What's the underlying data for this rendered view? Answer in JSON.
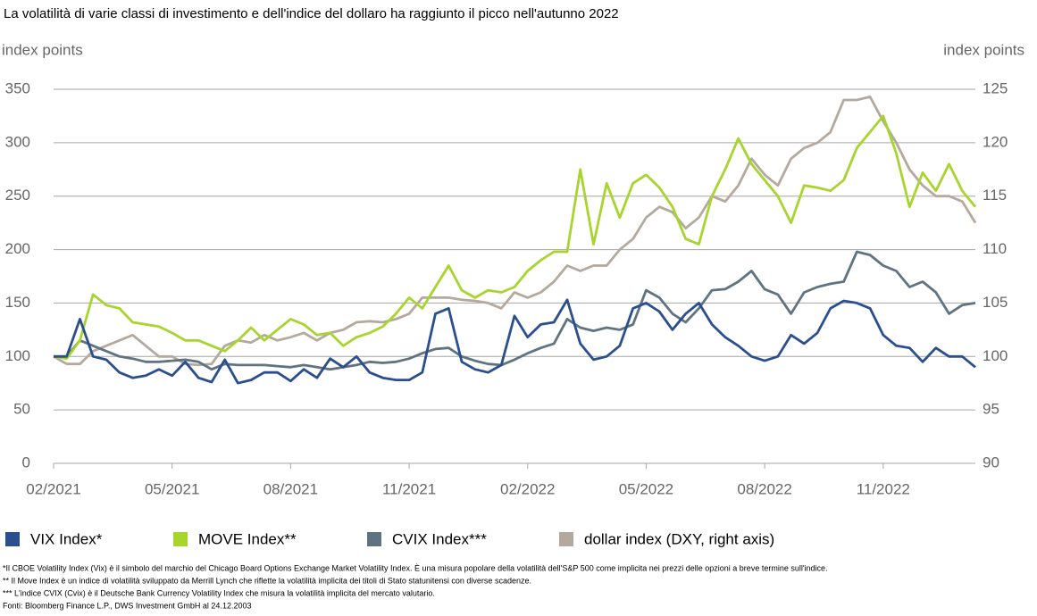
{
  "chart_data": {
    "type": "line",
    "title": "La volatilità di varie classi di investimento e dell'indice del dollaro ha raggiunto il picco nell'autunno 2022",
    "ylabel": "index points",
    "y2label": "index points",
    "categories": [
      "02/2021",
      null,
      null,
      null,
      null,
      null,
      null,
      null,
      null,
      "05/2021",
      null,
      null,
      null,
      null,
      null,
      null,
      null,
      null,
      "08/2021",
      null,
      null,
      null,
      null,
      null,
      null,
      null,
      null,
      "11/2021",
      null,
      null,
      null,
      null,
      null,
      null,
      null,
      null,
      "02/2022",
      null,
      null,
      null,
      null,
      null,
      null,
      null,
      null,
      "05/2022",
      null,
      null,
      null,
      null,
      null,
      null,
      null,
      null,
      "08/2022",
      null,
      null,
      null,
      null,
      null,
      null,
      null,
      null,
      "11/2022",
      null,
      null,
      null,
      null,
      null,
      null,
      null
    ],
    "ylim": [
      0,
      350
    ],
    "yticks": [
      0,
      50,
      100,
      150,
      200,
      250,
      300,
      350
    ],
    "y2lim": [
      90,
      125
    ],
    "y2ticks": [
      90,
      95,
      100,
      105,
      110,
      115,
      120,
      125
    ],
    "grid": true,
    "series": [
      {
        "name": "VIX Index*",
        "color": "#2b4f8e",
        "values": [
          100,
          100,
          135,
          100,
          97,
          85,
          80,
          82,
          88,
          82,
          95,
          80,
          76,
          97,
          75,
          78,
          85,
          85,
          77,
          88,
          80,
          98,
          90,
          100,
          85,
          80,
          78,
          78,
          85,
          140,
          145,
          95,
          88,
          85,
          92,
          138,
          118,
          130,
          132,
          153,
          112,
          97,
          100,
          110,
          145,
          150,
          142,
          125,
          140,
          150,
          130,
          118,
          110,
          100,
          96,
          100,
          120,
          112,
          122,
          145,
          152,
          150,
          145,
          120,
          110,
          108,
          95,
          108,
          100,
          100,
          90
        ]
      },
      {
        "name": "MOVE Index**",
        "color": "#a8d42e",
        "values": [
          100,
          98,
          115,
          158,
          148,
          145,
          132,
          130,
          128,
          122,
          115,
          115,
          110,
          105,
          115,
          127,
          115,
          125,
          135,
          130,
          120,
          122,
          110,
          118,
          122,
          128,
          140,
          155,
          145,
          165,
          185,
          162,
          155,
          162,
          160,
          165,
          180,
          190,
          198,
          198,
          275,
          205,
          262,
          230,
          262,
          270,
          258,
          240,
          210,
          205,
          250,
          275,
          304,
          280,
          265,
          250,
          225,
          260,
          258,
          255,
          265,
          295,
          310,
          325,
          290,
          240,
          272,
          255,
          280,
          255,
          240
        ]
      },
      {
        "name": "CVIX Index***",
        "color": "#5f7480",
        "values": [
          100,
          100,
          115,
          110,
          105,
          100,
          98,
          95,
          95,
          96,
          97,
          95,
          88,
          93,
          92,
          92,
          92,
          91,
          90,
          92,
          90,
          88,
          90,
          92,
          95,
          94,
          95,
          98,
          103,
          107,
          108,
          100,
          96,
          93,
          92,
          97,
          103,
          108,
          112,
          135,
          127,
          124,
          127,
          125,
          130,
          162,
          155,
          140,
          132,
          145,
          162,
          163,
          170,
          180,
          163,
          158,
          140,
          160,
          165,
          168,
          170,
          198,
          195,
          185,
          180,
          165,
          170,
          160,
          140,
          148,
          150
        ]
      },
      {
        "name": "dollar index (DXY, right axis)",
        "color": "#b5a99e",
        "axis": "y2",
        "values": [
          100,
          99.3,
          99.3,
          100.5,
          101,
          101.5,
          102,
          101,
          100,
          100,
          99.3,
          99.2,
          99.3,
          101,
          101.5,
          101.3,
          102,
          101.5,
          101.8,
          102.2,
          101.5,
          102.2,
          102.5,
          103.2,
          103.3,
          103.2,
          103.5,
          104,
          105.5,
          105.5,
          105.5,
          105.3,
          105.2,
          105,
          104.5,
          106,
          105.5,
          106,
          107,
          108.5,
          108,
          108.5,
          108.5,
          110,
          111,
          113,
          114,
          113.5,
          112,
          113,
          115,
          114.5,
          116,
          118.5,
          117,
          116,
          118.5,
          119.5,
          120,
          121,
          124,
          124,
          124.3,
          122,
          120,
          117.5,
          116,
          115,
          115,
          114.5,
          112.5
        ]
      }
    ],
    "notes": [
      "*Il CBOE Volatility Index (Vix) è il simbolo del marchio del Chicago Board Options Exchange Market Volatility Index. È una misura popolare della volatilità dell'S&P 500 come implicita nei prezzi delle opzioni a breve termine sull'indice.",
      "** Il Move Index è un indice di volatilità sviluppato da Merrill Lynch che riflette la volatilità implicita dei titoli di Stato statunitensi con diverse scadenze.",
      "*** L'indice CVIX (Cvix) è il Deutsche Bank Currency Volatility Index che misura la volatilità implicita del mercato valutario.",
      "Fonti: Bloomberg Finance L.P., DWS Investment GmbH al 24.12.2003"
    ]
  }
}
